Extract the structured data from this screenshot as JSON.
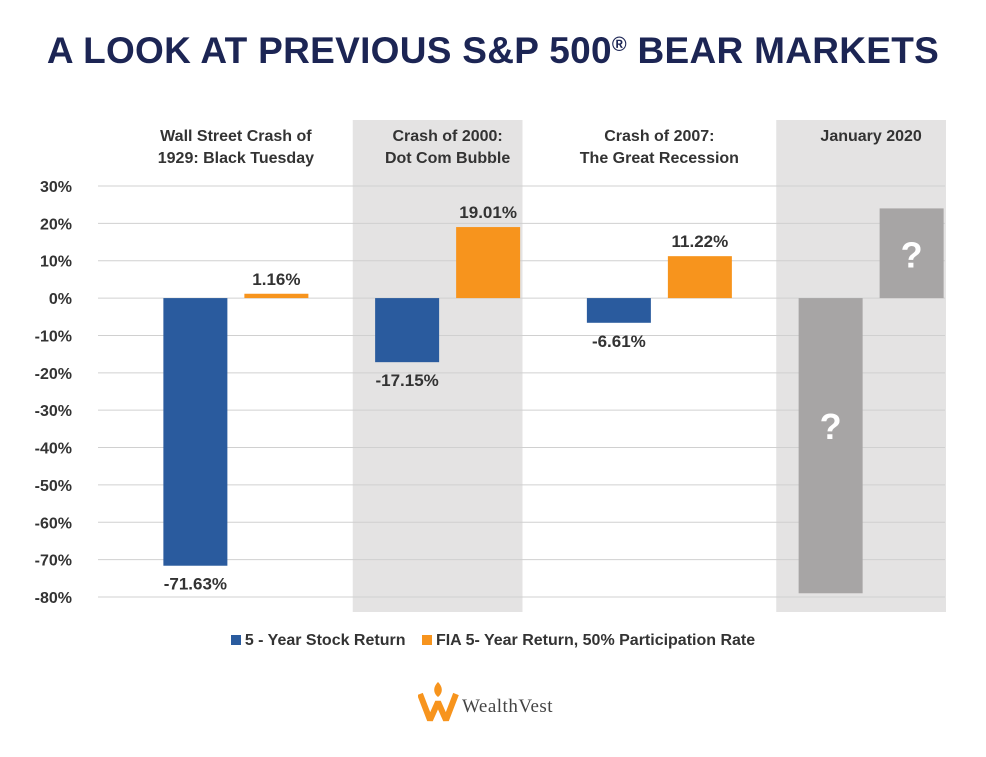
{
  "title": {
    "main": "A LOOK AT PREVIOUS S&P 500",
    "registered": "®",
    "suffix": " BEAR MARKETS"
  },
  "chart_data": {
    "type": "bar",
    "ylim": [
      -80,
      30
    ],
    "yticks": [
      30,
      20,
      10,
      0,
      -10,
      -20,
      -30,
      -40,
      -50,
      -60,
      -70,
      -80
    ],
    "ytick_labels": [
      "30%",
      "20%",
      "10%",
      "0%",
      "-10%",
      "-20%",
      "-30%",
      "-40%",
      "-50%",
      "-60%",
      "-70%",
      "-80%"
    ],
    "categories": [
      {
        "line1": "Wall Street Crash of",
        "line2": "1929: Black Tuesday",
        "shaded": false
      },
      {
        "line1": "Crash of 2000:",
        "line2": "Dot Com Bubble",
        "shaded": true
      },
      {
        "line1": "Crash of 2007:",
        "line2": "The Great Recession",
        "shaded": false
      },
      {
        "line1": "January 2020",
        "line2": "",
        "shaded": true
      }
    ],
    "series": [
      {
        "name": "5 - Year Stock Return",
        "color": "#2a5b9e",
        "values": [
          -71.63,
          -17.15,
          -6.61,
          null
        ],
        "labels": [
          "-71.63%",
          "-17.15%",
          "-6.61%",
          ""
        ]
      },
      {
        "name": "FIA 5- Year Return, 50% Participation Rate",
        "color": "#f7941d",
        "values": [
          1.16,
          19.01,
          11.22,
          null
        ],
        "labels": [
          "1.16%",
          "19.01%",
          "11.22%",
          ""
        ]
      }
    ],
    "unknown_bars": [
      {
        "series": 0,
        "category": 3,
        "value": -79,
        "label": "?",
        "color": "#a7a5a5"
      },
      {
        "series": 1,
        "category": 3,
        "value": 24,
        "label": "?",
        "color": "#a7a5a5"
      }
    ]
  },
  "legend": {
    "items": [
      {
        "label": "5 - Year Stock Return",
        "color": "#2a5b9e"
      },
      {
        "label": "FIA 5- Year Return, 50% Participation Rate",
        "color": "#f7941d"
      }
    ]
  },
  "logo": {
    "text": "WealthVest",
    "color": "#f7941d"
  },
  "colors": {
    "title": "#1c2554",
    "shade": "#e4e3e3",
    "grid": "#d0d0d0"
  }
}
